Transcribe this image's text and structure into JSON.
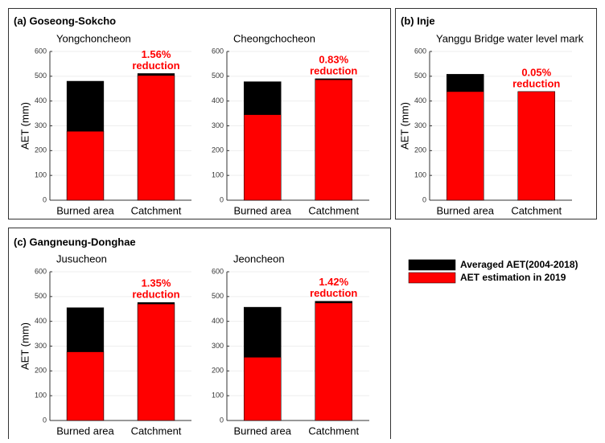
{
  "panels": [
    {
      "label": "(a) Goseong-Sokcho"
    },
    {
      "label": "(b) Inje"
    },
    {
      "label": "(c) Gangneung-Donghae"
    }
  ],
  "legend": [
    {
      "name": "Averaged AET(2004-2018)",
      "color": "#000000"
    },
    {
      "name": "AET estimation in 2019",
      "color": "#ff0000"
    }
  ],
  "chart_data": [
    {
      "type": "bar",
      "title": "Yongchoncheon",
      "ylabel": "AET (mm)",
      "categories": [
        "Burned area",
        "Catchment"
      ],
      "series": [
        {
          "values": [
            480,
            511
          ]
        },
        {
          "values": [
            278,
            503
          ]
        }
      ],
      "annotation": [
        "1.56%",
        "reduction"
      ],
      "ylim": [
        0,
        600
      ],
      "yticks": [
        0,
        100,
        200,
        300,
        400,
        500,
        600
      ],
      "grid": true
    },
    {
      "type": "bar",
      "title": "Cheongchocheon",
      "categories": [
        "Burned area",
        "Catchment"
      ],
      "series": [
        {
          "values": [
            478,
            490
          ]
        },
        {
          "values": [
            345,
            486
          ]
        }
      ],
      "annotation": [
        "0.83%",
        "reduction"
      ],
      "ylim": [
        0,
        600
      ],
      "yticks": [
        0,
        100,
        200,
        300,
        400,
        500,
        600
      ],
      "grid": true
    },
    {
      "type": "bar",
      "title": "Yanggu Bridge water level mark",
      "ylabel": "AET (mm)",
      "categories": [
        "Burned area",
        "Catchment"
      ],
      "series": [
        {
          "values": [
            508,
            438
          ]
        },
        {
          "values": [
            438,
            438
          ]
        }
      ],
      "annotation": [
        "0.05%",
        "reduction"
      ],
      "ylim": [
        0,
        600
      ],
      "yticks": [
        0,
        100,
        200,
        300,
        400,
        500,
        600
      ],
      "grid": true
    },
    {
      "type": "bar",
      "title": "Jusucheon",
      "ylabel": "AET (mm)",
      "categories": [
        "Burned area",
        "Catchment"
      ],
      "series": [
        {
          "values": [
            455,
            476
          ]
        },
        {
          "values": [
            277,
            470
          ]
        }
      ],
      "annotation": [
        "1.35%",
        "reduction"
      ],
      "ylim": [
        0,
        600
      ],
      "yticks": [
        0,
        100,
        200,
        300,
        400,
        500,
        600
      ],
      "grid": true
    },
    {
      "type": "bar",
      "title": "Jeoncheon",
      "categories": [
        "Burned area",
        "Catchment"
      ],
      "series": [
        {
          "values": [
            457,
            481
          ]
        },
        {
          "values": [
            255,
            474
          ]
        }
      ],
      "annotation": [
        "1.42%",
        "reduction"
      ],
      "ylim": [
        0,
        600
      ],
      "yticks": [
        0,
        100,
        200,
        300,
        400,
        500,
        600
      ],
      "grid": true
    }
  ]
}
